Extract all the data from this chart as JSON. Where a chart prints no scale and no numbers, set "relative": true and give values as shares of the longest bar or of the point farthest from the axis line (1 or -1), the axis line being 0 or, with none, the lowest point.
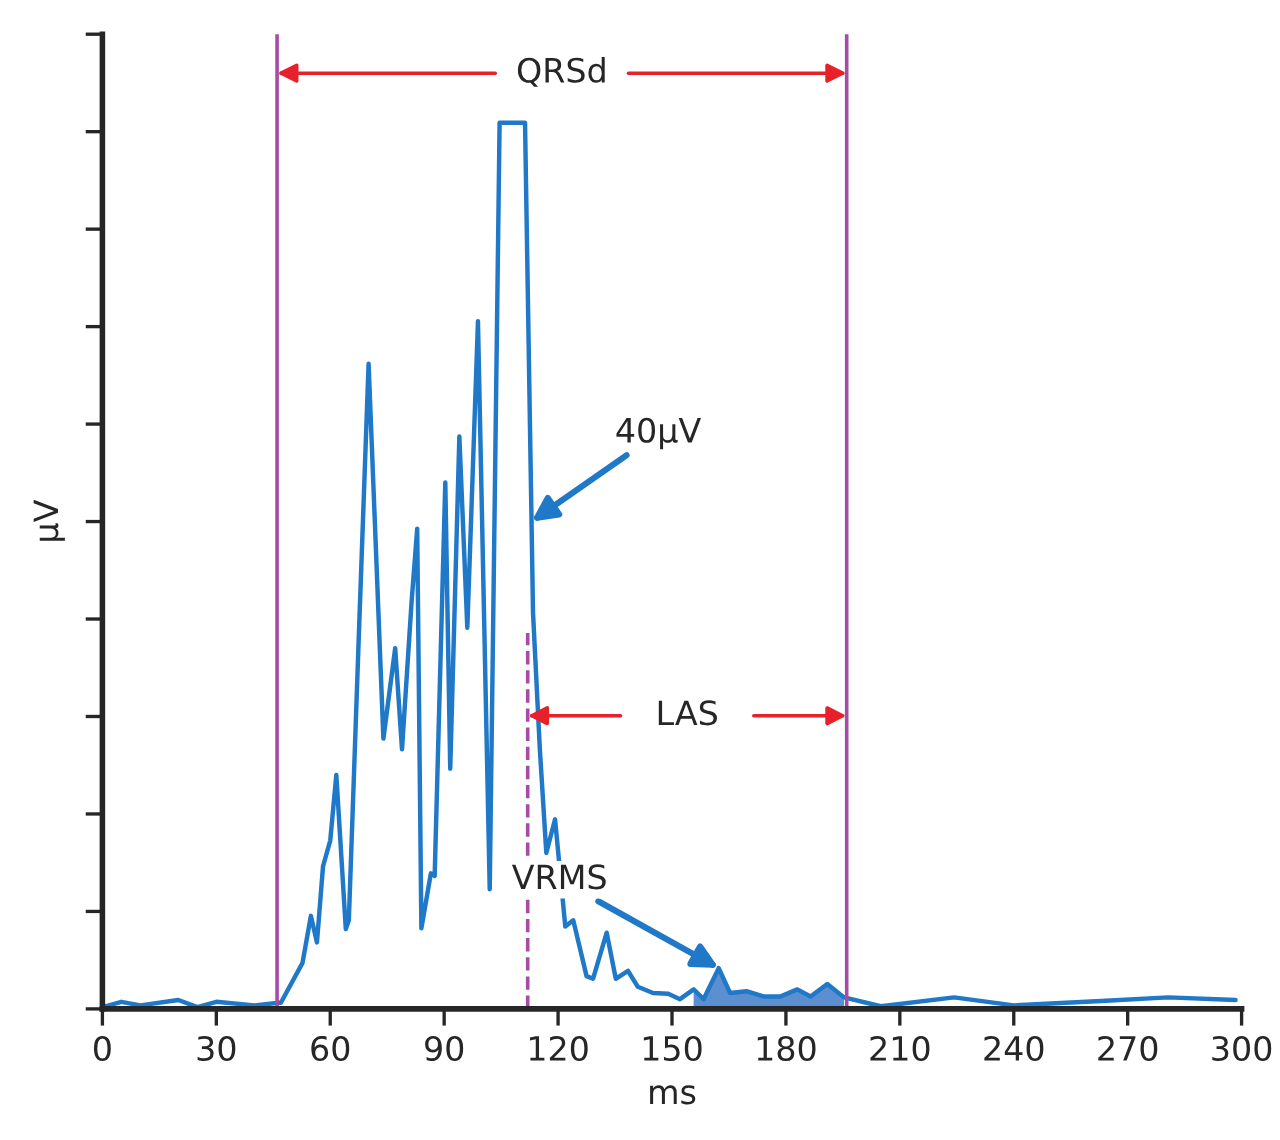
{
  "chart_data": {
    "type": "line",
    "relative": true,
    "xlabel": "ms",
    "ylabel": "µV",
    "xlim": [
      0,
      300
    ],
    "xticks": [
      0,
      30,
      60,
      90,
      120,
      150,
      180,
      210,
      240,
      270,
      300
    ],
    "grid": false,
    "legend": false,
    "marker": "none",
    "line_style": "solid",
    "series": [
      {
        "color": "#1f78c8",
        "x": [
          0,
          5,
          10,
          20,
          25,
          30,
          40,
          46.5,
          47,
          52.7,
          54.9,
          56.5,
          58.1,
          60,
          61.6,
          64.1,
          64.9,
          67.6,
          70.1,
          74,
          77.1,
          78.9,
          81.4,
          82.9,
          84,
          86.5,
          87.5,
          90.3,
          91.6,
          94,
          96.1,
          98.9,
          102,
          104.6,
          111.3,
          113.4,
          115.2,
          116.9,
          119.2,
          121.9,
          124,
          127.5,
          129.2,
          132.8,
          135.2,
          138.4,
          141,
          145,
          149,
          152.1,
          155.7,
          158.3,
          162.3,
          165.3,
          169.6,
          174.1,
          178.5,
          183,
          186.5,
          190.9,
          195.3,
          205,
          224.3,
          240,
          263,
          280.7,
          298.4
        ],
        "values": [
          0.002,
          0.008,
          0.004,
          0.01,
          0.002,
          0.008,
          0.004,
          0.007,
          0.007,
          0.052,
          0.105,
          0.075,
          0.161,
          0.19,
          0.264,
          0.09,
          0.1,
          0.43,
          0.728,
          0.305,
          0.407,
          0.293,
          0.458,
          0.542,
          0.091,
          0.153,
          0.15,
          0.594,
          0.271,
          0.646,
          0.43,
          0.776,
          0.135,
          1.0,
          1.0,
          0.447,
          0.293,
          0.176,
          0.214,
          0.093,
          0.1,
          0.037,
          0.034,
          0.086,
          0.034,
          0.043,
          0.025,
          0.018,
          0.017,
          0.011,
          0.022,
          0.011,
          0.046,
          0.018,
          0.02,
          0.014,
          0.014,
          0.022,
          0.014,
          0.028,
          0.013,
          0.003,
          0.013,
          0.004,
          0.009,
          0.013,
          0.01
        ]
      },
      {
        "type": "area",
        "color": "#5b8fd0",
        "x": [
          155.7,
          158.3,
          162.3,
          165.3,
          169.6,
          174.1,
          178.5,
          183,
          186.5,
          190.9,
          195.3
        ],
        "values": [
          0.022,
          0.011,
          0.046,
          0.018,
          0.02,
          0.014,
          0.014,
          0.022,
          0.014,
          0.028,
          0.013
        ]
      }
    ],
    "ref_lines": [
      {
        "axis": "x",
        "value": 46,
        "color": "#a64ca6",
        "line_style": "solid"
      },
      {
        "axis": "x",
        "value": 196,
        "color": "#a64ca6",
        "line_style": "solid"
      },
      {
        "axis": "x",
        "value": 112,
        "color": "#a64ca6",
        "line_style": "dashed"
      }
    ],
    "annotations": [
      "QRSd",
      "LAS",
      {
        "text": "40µV",
        "x": 113,
        "y": 0.55
      },
      {
        "text": "VRMS",
        "x": 162.3,
        "y": 0.046
      }
    ]
  }
}
